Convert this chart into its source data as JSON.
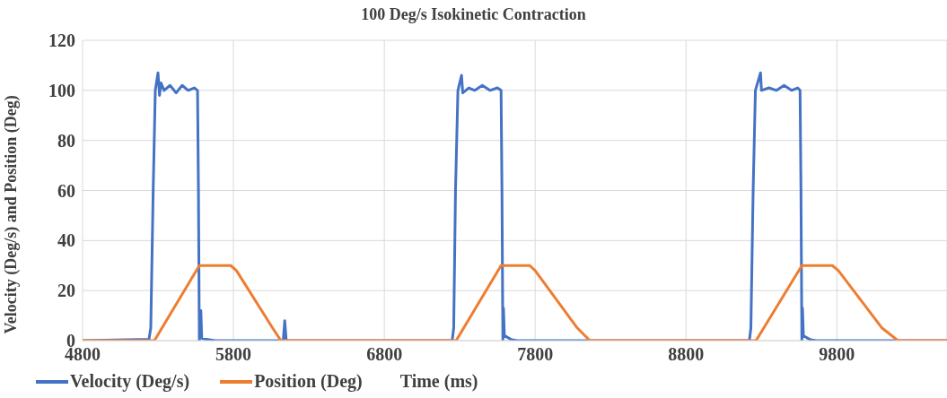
{
  "chart_data": {
    "type": "line",
    "title": "100 Deg/s Isokinetic Contraction",
    "xlabel": "Time (ms)",
    "ylabel": "Velocity (Deg/s) and Position (Deg)",
    "xlim": [
      4800,
      10530
    ],
    "xticks": [
      4800,
      5800,
      6800,
      7800,
      8800,
      9800
    ],
    "ylim": [
      0,
      120
    ],
    "yticks": [
      0,
      20,
      40,
      60,
      80,
      100,
      120
    ],
    "grid": true,
    "legend": "bottom",
    "marker": "none",
    "line_style": "solid",
    "series": [
      {
        "name": "Velocity (Deg/s)",
        "color": "#4472c4",
        "x": [
          4800,
          5240,
          5252,
          5268,
          5282,
          5300,
          5310,
          5320,
          5340,
          5380,
          5420,
          5460,
          5500,
          5540,
          5562,
          5568,
          5574,
          5578,
          5584,
          5590,
          5620,
          5680,
          6130,
          6140,
          6150,
          7250,
          7260,
          7272,
          7288,
          7312,
          7320,
          7360,
          7400,
          7450,
          7500,
          7550,
          7574,
          7580,
          7586,
          7590,
          7596,
          7640,
          7680,
          9220,
          9230,
          9245,
          9260,
          9294,
          9300,
          9350,
          9400,
          9450,
          9500,
          9540,
          9556,
          9562,
          9568,
          9572,
          9578,
          9620,
          9660,
          10530
        ],
        "values": [
          0,
          0.5,
          5,
          60,
          100,
          107,
          98,
          103,
          100,
          102,
          99,
          102,
          100,
          101,
          100,
          60,
          0,
          12,
          12,
          1,
          0.5,
          0,
          0,
          8,
          0,
          0,
          5,
          60,
          100,
          106,
          99,
          101,
          100,
          102,
          100,
          101,
          100,
          60,
          0,
          13,
          2,
          0.5,
          0,
          0,
          5,
          60,
          100,
          107,
          100,
          101,
          100,
          102,
          100,
          101,
          100,
          60,
          0,
          13,
          2,
          0.5,
          0,
          0
        ]
      },
      {
        "name": "Position (Deg)",
        "color": "#ed7d31",
        "x": [
          4800,
          5276,
          5574,
          5782,
          5820,
          6060,
          6115,
          7276,
          7574,
          7764,
          7800,
          8080,
          8163,
          9264,
          9568,
          9770,
          9810,
          10100,
          10205,
          10530
        ],
        "values": [
          0,
          0,
          30,
          30,
          28,
          5,
          0,
          0,
          30,
          30,
          28,
          5,
          0,
          0,
          30,
          30,
          28,
          5,
          0,
          0
        ]
      }
    ]
  }
}
